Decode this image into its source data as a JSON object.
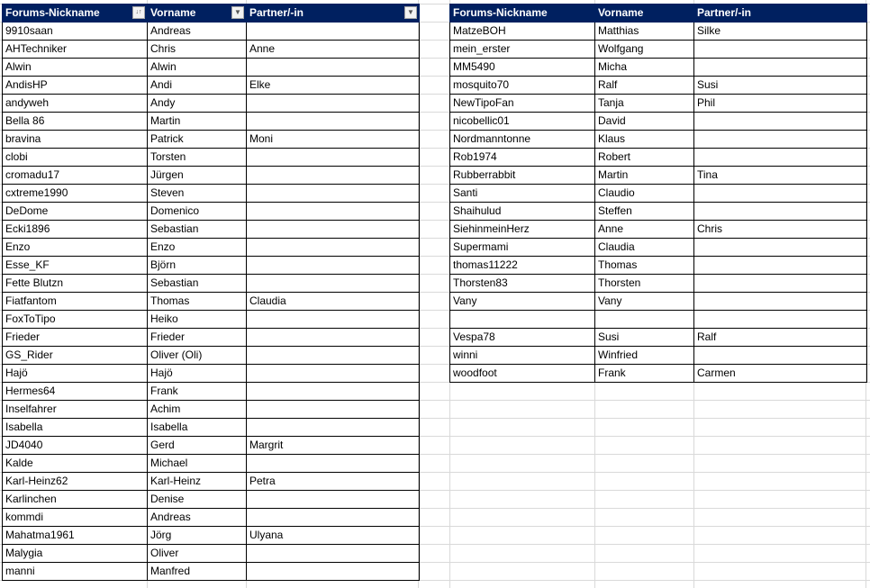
{
  "left_table": {
    "headers": [
      "Forums-Nickname",
      "Vorname",
      "Partner/-in"
    ],
    "filter_icons": [
      "sort-ascending-filter-icon",
      "filter-dropdown-icon",
      "filter-dropdown-icon"
    ],
    "rows": [
      [
        "9910saan",
        "Andreas",
        ""
      ],
      [
        "AHTechniker",
        "Chris",
        "Anne"
      ],
      [
        "Alwin",
        "Alwin",
        ""
      ],
      [
        "AndisHP",
        "Andi",
        "Elke"
      ],
      [
        "andyweh",
        "Andy",
        ""
      ],
      [
        "Bella 86",
        "Martin",
        ""
      ],
      [
        "bravina",
        "Patrick",
        "Moni"
      ],
      [
        "clobi",
        "Torsten",
        ""
      ],
      [
        "cromadu17",
        "Jürgen",
        ""
      ],
      [
        "cxtreme1990",
        "Steven",
        ""
      ],
      [
        "DeDome",
        "Domenico",
        ""
      ],
      [
        "Ecki1896",
        "Sebastian",
        ""
      ],
      [
        "Enzo",
        "Enzo",
        ""
      ],
      [
        "Esse_KF",
        "Björn",
        ""
      ],
      [
        "Fette Blutzn",
        "Sebastian",
        ""
      ],
      [
        "Fiatfantom",
        "Thomas",
        "Claudia"
      ],
      [
        "FoxToTipo",
        "Heiko",
        ""
      ],
      [
        "Frieder",
        "Frieder",
        ""
      ],
      [
        "GS_Rider",
        "Oliver (Oli)",
        ""
      ],
      [
        "Hajö",
        "Hajö",
        ""
      ],
      [
        "Hermes64",
        "Frank",
        ""
      ],
      [
        "Inselfahrer",
        "Achim",
        ""
      ],
      [
        "Isabella",
        "Isabella",
        ""
      ],
      [
        "JD4040",
        "Gerd",
        "Margrit"
      ],
      [
        "Kalde",
        "Michael",
        ""
      ],
      [
        "Karl-Heinz62",
        "Karl-Heinz",
        "Petra"
      ],
      [
        "Karlinchen",
        "Denise",
        ""
      ],
      [
        "kommdi",
        "Andreas",
        ""
      ],
      [
        "Mahatma1961",
        "Jörg",
        "Ulyana"
      ],
      [
        "Malygia",
        "Oliver",
        ""
      ],
      [
        "manni",
        "Manfred",
        ""
      ]
    ]
  },
  "right_table": {
    "headers": [
      "Forums-Nickname",
      "Vorname",
      "Partner/-in"
    ],
    "rows": [
      [
        "MatzeBOH",
        "Matthias",
        "Silke"
      ],
      [
        "mein_erster",
        "Wolfgang",
        ""
      ],
      [
        "MM5490",
        "Micha",
        ""
      ],
      [
        "mosquito70",
        "Ralf",
        "Susi"
      ],
      [
        "NewTipoFan",
        "Tanja",
        "Phil"
      ],
      [
        "nicobellic01",
        "David",
        ""
      ],
      [
        "Nordmanntonne",
        "Klaus",
        ""
      ],
      [
        "Rob1974",
        "Robert",
        ""
      ],
      [
        "Rubberrabbit",
        "Martin",
        "Tina"
      ],
      [
        "Santi",
        "Claudio",
        ""
      ],
      [
        "Shaihulud",
        "Steffen",
        ""
      ],
      [
        "SiehinmeinHerz",
        "Anne",
        "Chris"
      ],
      [
        "Supermami",
        "Claudia",
        ""
      ],
      [
        "thomas11222",
        "Thomas",
        ""
      ],
      [
        "Thorsten83",
        "Thorsten",
        ""
      ],
      [
        "Vany",
        "Vany",
        ""
      ],
      [
        "",
        "",
        ""
      ],
      [
        "Vespa78",
        "Susi",
        "Ralf"
      ],
      [
        "winni",
        "Winfried",
        ""
      ],
      [
        "woodfoot",
        "Frank",
        "Carmen"
      ]
    ]
  },
  "colors": {
    "header_bg": "#002060",
    "header_text": "#ffffff",
    "gridline": "#d9d9d9"
  }
}
